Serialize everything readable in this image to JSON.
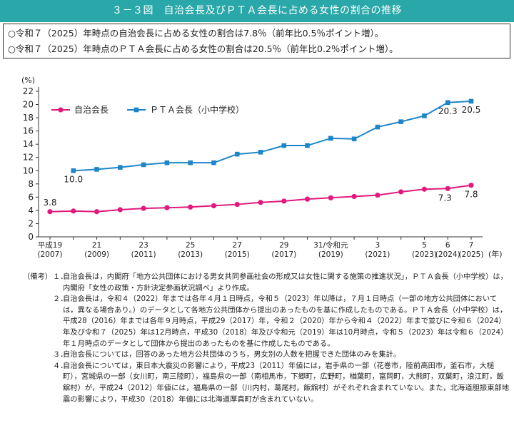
{
  "title": "３－３図　自治会長及びＰＴＡ会長に占める女性の割合の推移",
  "summary": [
    "○令和７（2025）年時点の自治会長に占める女性の割合は7.8％（前年比0.5％ポイント増）。",
    "○令和７（2025）年時点のＰＴＡ会長に占める女性の割合は20.5％（前年比0.2％ポイント増）。"
  ],
  "chart_data": {
    "type": "line",
    "y_unit": "(%)",
    "x_unit": "(年)",
    "ylim": [
      0,
      22
    ],
    "yticks": [
      0,
      2,
      4,
      6,
      8,
      10,
      12,
      14,
      16,
      18,
      20,
      22
    ],
    "x": [
      2007,
      2008,
      2009,
      2010,
      2011,
      2012,
      2013,
      2014,
      2015,
      2016,
      2017,
      2018,
      2019,
      2020,
      2021,
      2022,
      2023,
      2024,
      2025
    ],
    "tick_labels": [
      {
        "x": 2007,
        "top": "平成19",
        "bottom": "(2007)"
      },
      {
        "x": 2009,
        "top": "21",
        "bottom": "(2009)"
      },
      {
        "x": 2011,
        "top": "23",
        "bottom": "(2011)"
      },
      {
        "x": 2013,
        "top": "25",
        "bottom": "(2013)"
      },
      {
        "x": 2015,
        "top": "27",
        "bottom": "(2015)"
      },
      {
        "x": 2017,
        "top": "29",
        "bottom": "(2017)"
      },
      {
        "x": 2019,
        "top": "31/令和元",
        "bottom": "(2019)"
      },
      {
        "x": 2021,
        "top": "3",
        "bottom": "(2021)"
      },
      {
        "x": 2023,
        "top": "5",
        "bottom": "(2023)"
      },
      {
        "x": 2024,
        "top": "6",
        "bottom": "(2024)"
      },
      {
        "x": 2025,
        "top": "7",
        "bottom": "(2025)"
      }
    ],
    "series": [
      {
        "name": "自治会長",
        "color": "#e0197d",
        "marker": "circle",
        "x": [
          2007,
          2008,
          2009,
          2010,
          2011,
          2012,
          2013,
          2014,
          2015,
          2016,
          2017,
          2018,
          2019,
          2020,
          2021,
          2022,
          2023,
          2024,
          2025
        ],
        "values": [
          3.8,
          3.9,
          3.8,
          4.1,
          4.3,
          4.4,
          4.5,
          4.7,
          4.9,
          5.2,
          5.4,
          5.7,
          5.9,
          6.1,
          6.3,
          6.8,
          7.2,
          7.3,
          7.8
        ],
        "labels": [
          {
            "x": 2007,
            "text": "3.8"
          },
          {
            "x": 2024,
            "text": "7.3"
          },
          {
            "x": 2025,
            "text": "7.8"
          }
        ]
      },
      {
        "name": "ＰＴＡ会長（小中学校）",
        "color": "#1e86c8",
        "marker": "square",
        "x": [
          2008,
          2009,
          2010,
          2011,
          2012,
          2013,
          2014,
          2015,
          2016,
          2017,
          2018,
          2019,
          2020,
          2021,
          2022,
          2023,
          2024,
          2025
        ],
        "values": [
          10.0,
          10.2,
          10.5,
          10.9,
          11.2,
          11.2,
          11.2,
          12.5,
          12.8,
          13.8,
          13.8,
          14.9,
          14.8,
          16.6,
          17.4,
          18.3,
          20.3,
          20.5
        ],
        "labels": [
          {
            "x": 2008,
            "text": "10.0"
          },
          {
            "x": 2024,
            "text": "20.3"
          },
          {
            "x": 2025,
            "text": "20.5"
          }
        ]
      }
    ],
    "legend_placement": "top-left",
    "grid": false
  },
  "notes": {
    "lead": "（備考）",
    "items": [
      {
        "num": "１．",
        "text": "自治会長は，内閣府「地方公共団体における男女共同参画社会の形成又は女性に関する施策の推進状況」，ＰＴＡ会長（小中学校）は，内閣府「女性の政策・方針決定参画状況調べ」より作成。"
      },
      {
        "num": "２．",
        "text": "自治会長は，令和４（2022）年までは各年４月１日時点，令和５（2023）年以降は，７月１日時点（一部の地方公共団体においては，異なる場合あり。）のデータとして各地方公共団体から提出のあったものを基に作成したものである。ＰＴＡ会長（小中学校）は，平成28（2016）年までは各年９月時点，平成29（2017）年，令和２（2020）年から令和４（2022）年まで並びに令和６（2024）年及び令和７（2025）年は12月時点，平成30（2018）年及び令和元（2019）年は10月時点，令和５（2023）年は令和６（2024）年１月時点のデータとして団体から提出のあったものを基に作成したものである。"
      },
      {
        "num": "３．",
        "text": "自治会長については，回答のあった地方公共団体のうち，男女別の人数を把握できた団体のみを集計。"
      },
      {
        "num": "４．",
        "text": "自治会長については，東日本大震災の影響により，平成23（2011）年値には，岩手県の一部（花巻市，陸前高田市，釜石市，大槌町），宮城県の一部（女川町，南三陸町），福島県の一部（南相馬市，下郷町，広野町，楢葉町，富岡町，大熊町，双葉町，浪江町，飯舘村）が，平成24（2012）年値には，福島県の一部（川内村，葛尾村，飯舘村）がそれぞれ含まれていない。また，北海道胆振東部地震の影響により，平成30（2018）年値には北海道厚真町が含まれていない。"
      }
    ]
  }
}
